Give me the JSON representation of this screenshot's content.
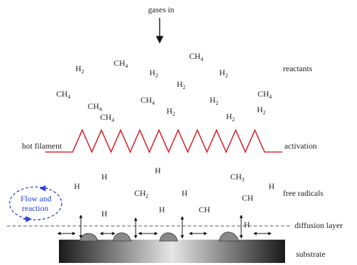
{
  "labels": {
    "gases_in": "gases in",
    "reactants": "reactants",
    "hot_filament": "hot filament",
    "activation": "activation",
    "free_radicals": "free radicals",
    "flow_and": "Flow and",
    "reaction": "reaction",
    "diffusion_layer": "diffusion layer",
    "substrate": "substrate"
  },
  "reactants": [
    {
      "t": "H",
      "s": "2"
    },
    {
      "t": "CH",
      "s": "4"
    },
    {
      "t": "H",
      "s": "2"
    },
    {
      "t": "CH",
      "s": "4"
    },
    {
      "t": "H",
      "s": "2"
    },
    {
      "t": "H",
      "s": "2"
    },
    {
      "t": "CH",
      "s": "4"
    },
    {
      "t": "CH",
      "s": "4"
    },
    {
      "t": "CH",
      "s": "4"
    },
    {
      "t": "H",
      "s": "2"
    },
    {
      "t": "CH",
      "s": "4"
    },
    {
      "t": "CH",
      "s": "4"
    },
    {
      "t": "H",
      "s": "2"
    },
    {
      "t": "H",
      "s": "2"
    },
    {
      "t": "H",
      "s": "2"
    }
  ],
  "radicals": [
    {
      "t": "H",
      "s": ""
    },
    {
      "t": "H",
      "s": ""
    },
    {
      "t": "CH",
      "s": "3"
    },
    {
      "t": "H",
      "s": ""
    },
    {
      "t": "H",
      "s": ""
    },
    {
      "t": "CH",
      "s": "2"
    },
    {
      "t": "H",
      "s": ""
    },
    {
      "t": "CH",
      "s": ""
    },
    {
      "t": "CH",
      "s": ""
    },
    {
      "t": "H",
      "s": ""
    },
    {
      "t": "H",
      "s": ""
    },
    {
      "t": "H",
      "s": ""
    }
  ],
  "colors": {
    "filament": "#d8262e",
    "flow": "#2a3fd6",
    "text": "#222222"
  }
}
